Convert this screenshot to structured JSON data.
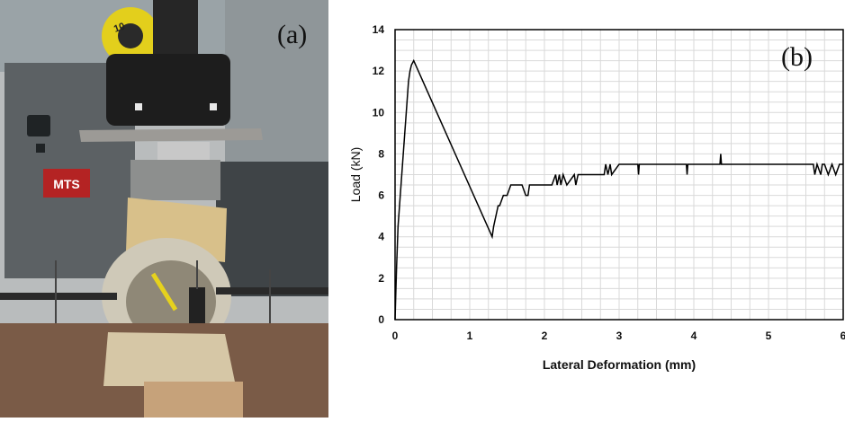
{
  "panels": {
    "photo_label": "(a)",
    "chart_label": "(b)",
    "machine_badge": "MTS",
    "spool_text": "10"
  },
  "chart_data": {
    "type": "line",
    "xlabel": "Lateral Deformation (mm)",
    "ylabel": "Load (kN)",
    "xlim": [
      0,
      6
    ],
    "ylim": [
      0,
      14
    ],
    "xticks": [
      0,
      1,
      2,
      3,
      4,
      5,
      6
    ],
    "yticks": [
      0,
      2,
      4,
      6,
      8,
      10,
      12,
      14
    ],
    "grid": true,
    "series": [
      {
        "color": "#000000",
        "x": [
          0,
          0.02,
          0.04,
          0.06,
          0.08,
          0.1,
          0.12,
          0.14,
          0.16,
          0.18,
          0.2,
          0.22,
          0.25,
          1.3,
          1.32,
          1.35,
          1.38,
          1.4,
          1.45,
          1.5,
          1.55,
          1.6,
          1.65,
          1.7,
          1.75,
          1.78,
          1.8,
          1.9,
          2.1,
          2.15,
          2.17,
          2.2,
          2.22,
          2.25,
          2.3,
          2.4,
          2.42,
          2.45,
          2.6,
          2.8,
          2.82,
          2.85,
          2.88,
          2.9,
          3.0,
          3.25,
          3.26,
          3.27,
          3.9,
          3.91,
          3.92,
          4.35,
          4.36,
          4.37,
          5.6,
          5.62,
          5.65,
          5.7,
          5.72,
          5.75,
          5.8,
          5.85,
          5.9,
          5.95,
          6.0
        ],
        "y": [
          0,
          2.5,
          4.5,
          5.5,
          6.5,
          7.5,
          8.5,
          9.5,
          10.5,
          11.5,
          12.0,
          12.3,
          12.5,
          4.0,
          4.5,
          5.0,
          5.5,
          5.5,
          6.0,
          6.0,
          6.5,
          6.5,
          6.5,
          6.5,
          6.0,
          6.0,
          6.5,
          6.5,
          6.5,
          7.0,
          6.5,
          7.0,
          6.5,
          7.0,
          6.5,
          7.0,
          6.5,
          7.0,
          7.0,
          7.0,
          7.5,
          7.0,
          7.5,
          7.0,
          7.5,
          7.5,
          7.0,
          7.5,
          7.5,
          7.0,
          7.5,
          7.5,
          8.0,
          7.5,
          7.5,
          7.0,
          7.5,
          7.0,
          7.5,
          7.5,
          7.0,
          7.5,
          7.0,
          7.5,
          7.5
        ]
      }
    ]
  }
}
